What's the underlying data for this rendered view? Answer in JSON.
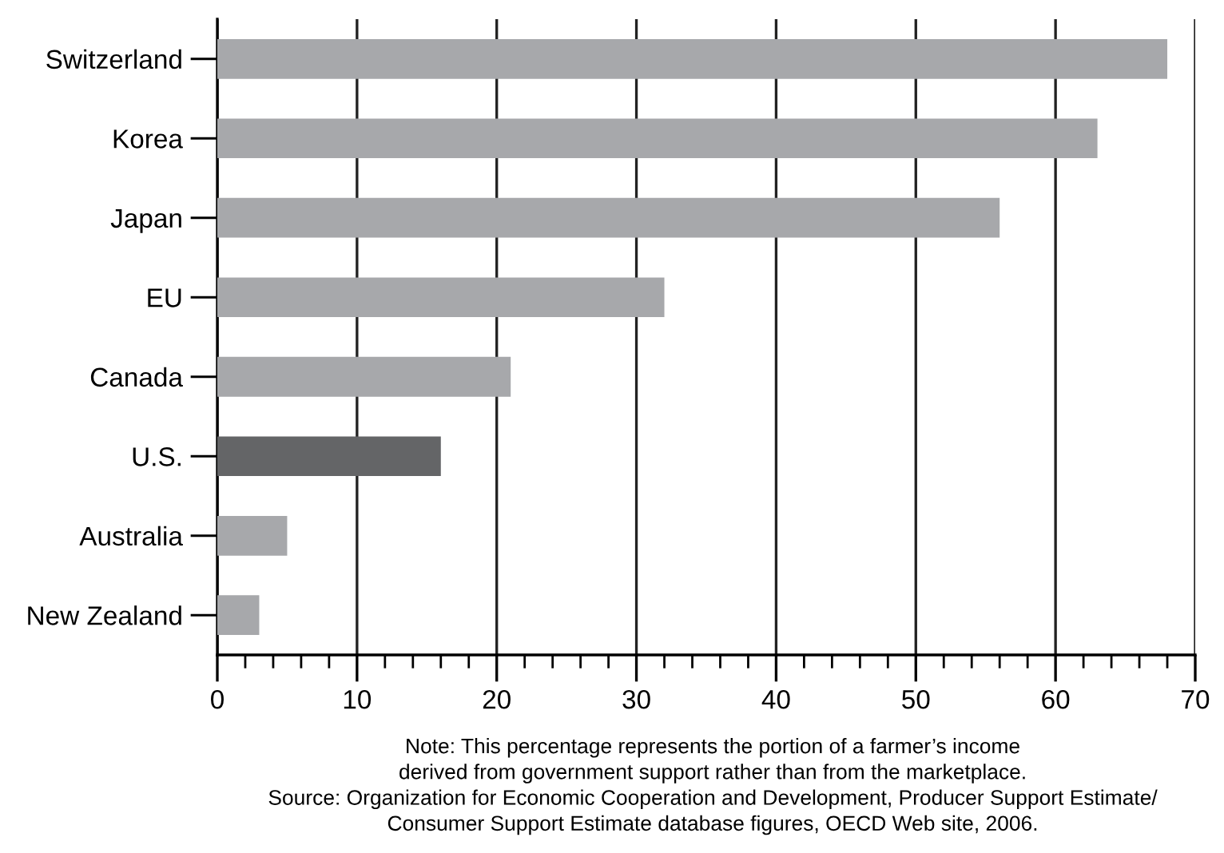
{
  "chart_data": {
    "type": "bar",
    "orientation": "horizontal",
    "categories": [
      "Switzerland",
      "Korea",
      "Japan",
      "EU",
      "Canada",
      "U.S.",
      "Australia",
      "New Zealand"
    ],
    "values": [
      68,
      63,
      56,
      32,
      21,
      16,
      5,
      3
    ],
    "colors": [
      "#a7a8ab",
      "#a7a8ab",
      "#a7a8ab",
      "#a7a8ab",
      "#a7a8ab",
      "#646567",
      "#a7a8ab",
      "#a7a8ab"
    ],
    "xlim": [
      0,
      70
    ],
    "xticks": [
      0,
      {
        "value": 2,
        "label": null
      },
      {
        "value": 4,
        "label": null
      },
      {
        "value": 6,
        "label": null
      },
      {
        "value": 8,
        "label": null
      },
      10,
      {
        "value": 12,
        "label": null
      },
      {
        "value": 14,
        "label": null
      },
      {
        "value": 16,
        "label": null
      },
      {
        "value": 18,
        "label": null
      },
      20,
      {
        "value": 22,
        "label": null
      },
      {
        "value": 24,
        "label": null
      },
      {
        "value": 26,
        "label": null
      },
      {
        "value": 28,
        "label": null
      },
      30,
      {
        "value": 32,
        "label": null
      },
      {
        "value": 34,
        "label": null
      },
      {
        "value": 36,
        "label": null
      },
      {
        "value": 38,
        "label": null
      },
      40,
      {
        "value": 42,
        "label": null
      },
      {
        "value": 44,
        "label": null
      },
      {
        "value": 46,
        "label": null
      },
      {
        "value": 48,
        "label": null
      },
      50,
      {
        "value": 52,
        "label": null
      },
      {
        "value": 54,
        "label": null
      },
      {
        "value": 56,
        "label": null
      },
      {
        "value": 58,
        "label": null
      },
      60,
      {
        "value": 62,
        "label": null
      },
      {
        "value": 64,
        "label": null
      },
      {
        "value": 66,
        "label": null
      },
      {
        "value": 68,
        "label": null
      },
      70
    ],
    "grid": "x",
    "annotations": [
      "Note: This percentage represents the portion of a farmer’s income\nderived from government support rather than from the marketplace.\nSource: Organization for Economic Cooperation and Development, Producer Support Estimate/\nConsumer Support Estimate database figures, OECD Web site, 2006."
    ]
  }
}
